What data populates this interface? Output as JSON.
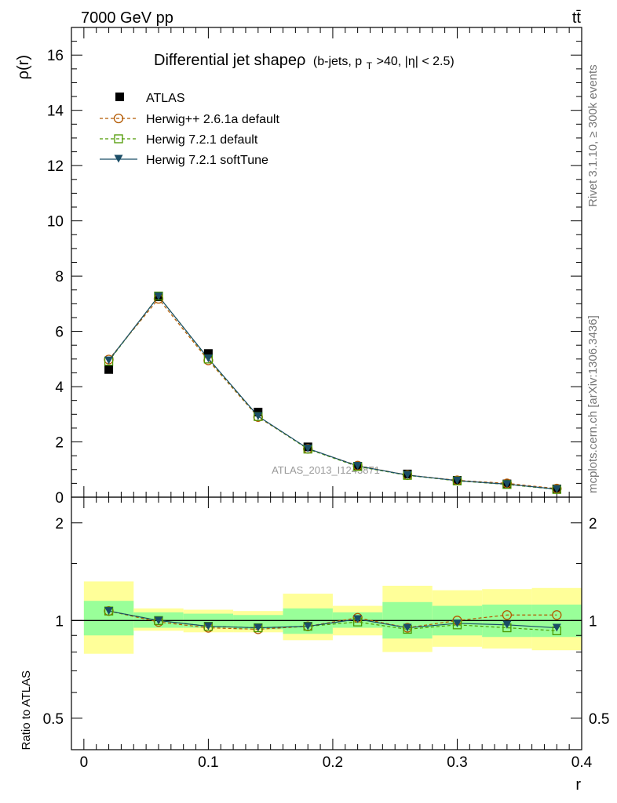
{
  "header": {
    "energy_label": "7000 GeV pp",
    "process_label": "tt̄"
  },
  "side_labels": {
    "rivet": "Rivet 3.1.10, ≥ 300k events",
    "mcplots": "mcplots.cern.ch [arXiv:1306.3436]"
  },
  "chart_data": {
    "type": "line",
    "title_main": "Differential jet shapeρ",
    "title_sub_prefix": "(b-jets, p",
    "title_sub_subscript": "T",
    "title_sub_suffix": ">40, |η| < 2.5)",
    "watermark": "ATLAS_2013_I1243871",
    "xlabel": "r",
    "ylabel": "ρ(r)",
    "ratio_ylabel": "Ratio to ATLAS",
    "xlim": [
      -0.01,
      0.4
    ],
    "ylim": [
      0,
      17
    ],
    "ratio_ylim": [
      0.4,
      2.4
    ],
    "ratio_scale": "log",
    "x_ticks": [
      0,
      0.1,
      0.2,
      0.3,
      0.4
    ],
    "x_tick_labels": [
      "0",
      "0.1",
      "0.2",
      "0.3",
      "0.4"
    ],
    "y_ticks": [
      0,
      2,
      4,
      6,
      8,
      10,
      12,
      14,
      16
    ],
    "y_tick_labels": [
      "0",
      "2",
      "4",
      "6",
      "8",
      "10",
      "12",
      "14",
      "16"
    ],
    "ratio_ticks": [
      0.5,
      1,
      2
    ],
    "ratio_tick_labels": [
      "0.5",
      "1",
      "2"
    ],
    "x": [
      0.02,
      0.06,
      0.1,
      0.14,
      0.18,
      0.22,
      0.26,
      0.3,
      0.34,
      0.38
    ],
    "bin_edges": [
      0,
      0.04,
      0.08,
      0.12,
      0.16,
      0.2,
      0.24,
      0.28,
      0.32,
      0.36,
      0.4
    ],
    "data": {
      "name": "ATLAS",
      "values": [
        4.62,
        7.25,
        5.2,
        3.08,
        1.82,
        1.12,
        0.84,
        0.61,
        0.48,
        0.3
      ]
    },
    "band_stat": [
      [
        0.9,
        1.15
      ],
      [
        0.95,
        1.06
      ],
      [
        0.95,
        1.05
      ],
      [
        0.94,
        1.04
      ],
      [
        0.91,
        1.09
      ],
      [
        0.95,
        1.06
      ],
      [
        0.88,
        1.14
      ],
      [
        0.9,
        1.11
      ],
      [
        0.89,
        1.12
      ],
      [
        0.89,
        1.12
      ]
    ],
    "band_total": [
      [
        0.79,
        1.32
      ],
      [
        0.93,
        1.09
      ],
      [
        0.92,
        1.08
      ],
      [
        0.92,
        1.07
      ],
      [
        0.87,
        1.21
      ],
      [
        0.9,
        1.11
      ],
      [
        0.8,
        1.28
      ],
      [
        0.83,
        1.24
      ],
      [
        0.82,
        1.25
      ],
      [
        0.81,
        1.26
      ]
    ],
    "series": [
      {
        "name": "Herwig++ 2.6.1a default",
        "color": "#b35900",
        "dash": "4,3",
        "marker": "circle-open",
        "values": [
          4.98,
          7.18,
          4.95,
          2.9,
          1.75,
          1.14,
          0.8,
          0.61,
          0.5,
          0.31
        ],
        "ratio": [
          1.07,
          0.99,
          0.95,
          0.94,
          0.96,
          1.02,
          0.95,
          1.0,
          1.04,
          1.04
        ]
      },
      {
        "name": "Herwig 7.2.1 default",
        "color": "#4d9900",
        "dash": "4,3",
        "marker": "square-open",
        "values": [
          4.92,
          7.28,
          5.0,
          2.92,
          1.74,
          1.11,
          0.79,
          0.59,
          0.46,
          0.28
        ],
        "ratio": [
          1.07,
          1.0,
          0.96,
          0.95,
          0.96,
          0.99,
          0.94,
          0.97,
          0.95,
          0.93
        ]
      },
      {
        "name": "Herwig 7.2.1 softTune",
        "color": "#1a4d66",
        "dash": "",
        "marker": "triangle-down-filled",
        "values": [
          4.95,
          7.27,
          5.02,
          2.93,
          1.76,
          1.13,
          0.8,
          0.6,
          0.47,
          0.29
        ],
        "ratio": [
          1.07,
          1.0,
          0.96,
          0.95,
          0.96,
          1.01,
          0.95,
          0.98,
          0.97,
          0.95
        ]
      }
    ],
    "colors": {
      "stat_band": "#99ff99",
      "total_band": "#ffff99",
      "data_marker": "#000000"
    }
  }
}
